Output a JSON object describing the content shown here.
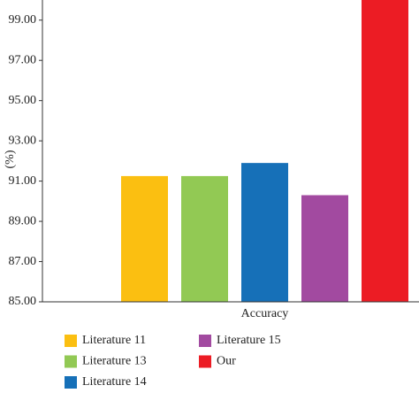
{
  "chart_data": {
    "type": "bar",
    "ylabel": "(%)",
    "categories": [
      "Accuracy"
    ],
    "series": [
      {
        "name": "Literature 11",
        "color": "#fbbf11",
        "values": [
          91.25
        ]
      },
      {
        "name": "Literature 13",
        "color": "#92c954",
        "values": [
          91.25
        ]
      },
      {
        "name": "Literature 14",
        "color": "#1670b8",
        "values": [
          91.9
        ]
      },
      {
        "name": "Literature 15",
        "color": "#a24aa0",
        "values": [
          90.3
        ]
      },
      {
        "name": "Our",
        "color": "#ec1c24",
        "values": [
          100
        ]
      }
    ],
    "ylim": [
      85,
      100
    ],
    "yticks": [
      {
        "value": 85,
        "label": "85.00"
      },
      {
        "value": 87,
        "label": "87.00"
      },
      {
        "value": 89,
        "label": "89.00"
      },
      {
        "value": 91,
        "label": "91.00"
      },
      {
        "value": 93,
        "label": "93.00"
      },
      {
        "value": 95,
        "label": "95.00"
      },
      {
        "value": 97,
        "label": "97.00"
      },
      {
        "value": 99,
        "label": "99.00"
      }
    ],
    "legend": "bottom"
  }
}
